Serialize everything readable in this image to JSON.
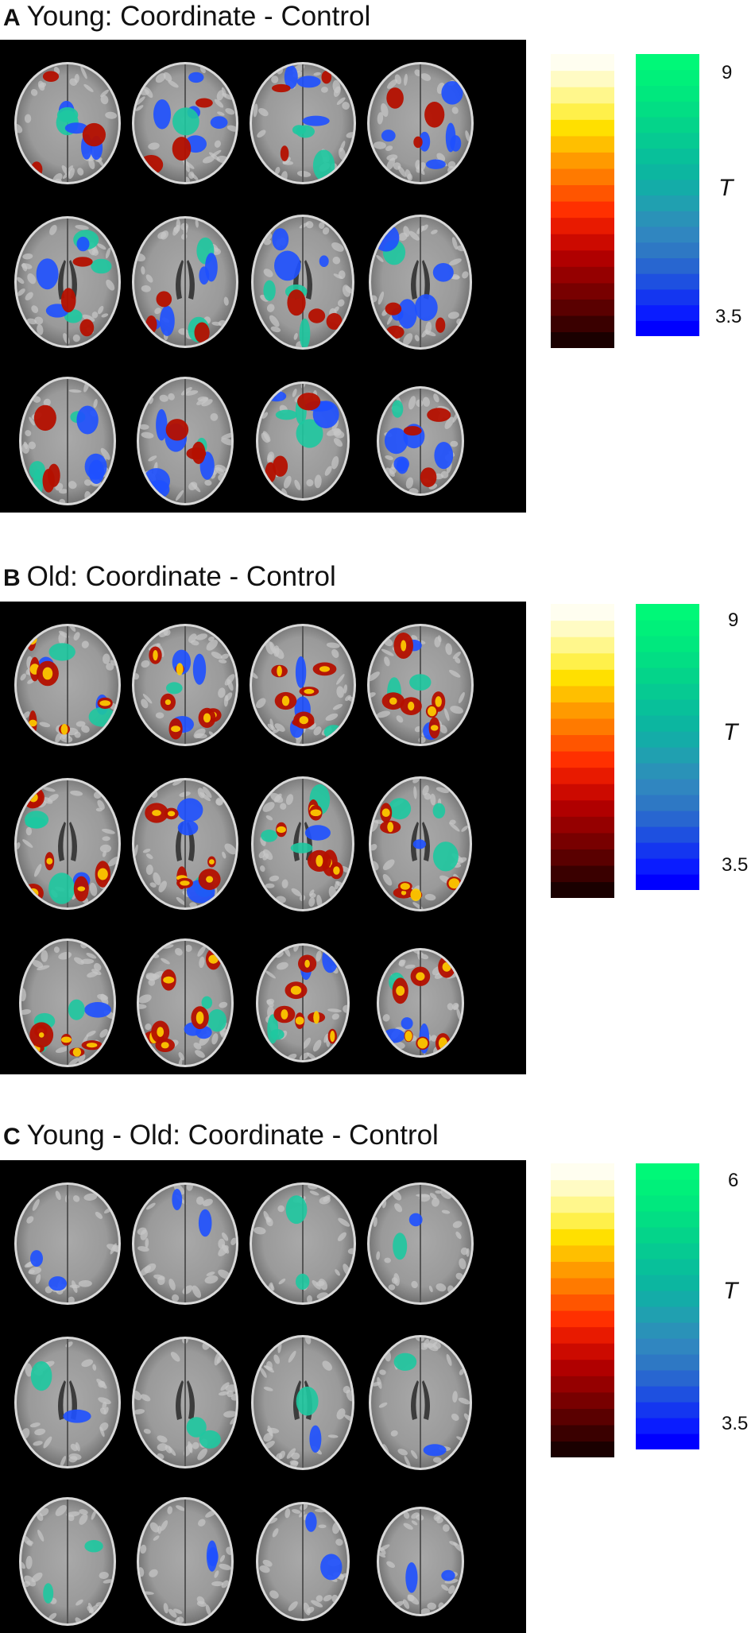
{
  "panels": [
    {
      "letter": "A",
      "title": "Young: Coordinate - Control",
      "colorbar": {
        "max_label": "9",
        "min_label": "3.5",
        "axis_label": "T"
      },
      "activation_strength": {
        "blue": 1.0,
        "red": 0.55
      }
    },
    {
      "letter": "B",
      "title": "Old: Coordinate - Control",
      "colorbar": {
        "max_label": "9",
        "min_label": "3.5",
        "axis_label": "T"
      },
      "activation_strength": {
        "blue": 0.6,
        "red": 1.0
      }
    },
    {
      "letter": "C",
      "title": "Young - Old: Coordinate - Control",
      "colorbar": {
        "max_label": "6",
        "min_label": "3.5",
        "axis_label": "T"
      },
      "activation_strength": {
        "blue": 0.3,
        "red": 0.0
      }
    }
  ],
  "colormaps": {
    "hot": [
      "#1a0000",
      "#3a0000",
      "#5a0000",
      "#780000",
      "#950000",
      "#b00000",
      "#cc0a00",
      "#e81a00",
      "#ff3000",
      "#ff5500",
      "#ff7a00",
      "#ff9a00",
      "#ffbf00",
      "#ffe000",
      "#fff04a",
      "#fff78c",
      "#fffbc4",
      "#fffef0"
    ],
    "cool": [
      "#0000ff",
      "#0a1cff",
      "#1436f0",
      "#1e50e0",
      "#2866d0",
      "#2e78c4",
      "#3086c0",
      "#2a92b8",
      "#20a0b0",
      "#14aca8",
      "#0cb6a0",
      "#08c09a",
      "#06ca92",
      "#04d48a",
      "#02de84",
      "#00e87e",
      "#00f07a",
      "#00f878"
    ]
  },
  "slices_per_row": 4,
  "rows_per_panel": 3
}
